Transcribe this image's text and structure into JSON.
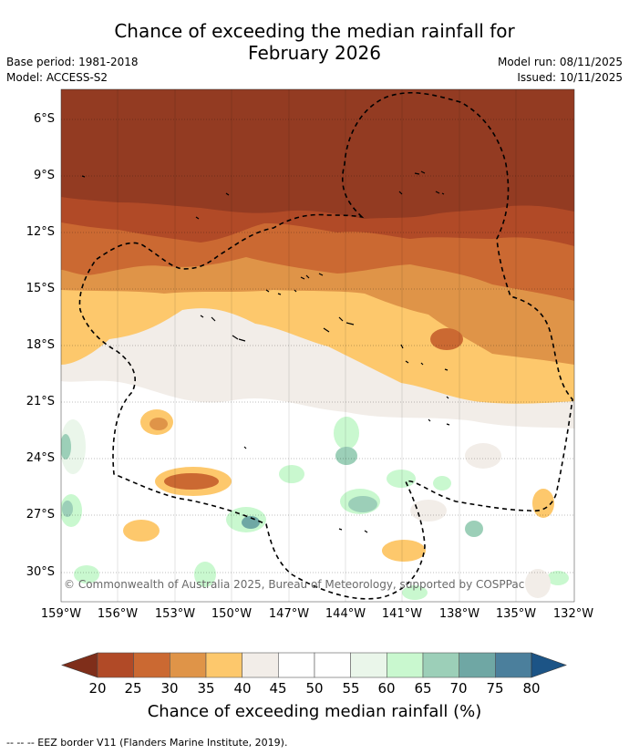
{
  "title_line1": "Chance of exceeding the median rainfall for",
  "title_line2": "February 2026",
  "meta": {
    "base_period": "Base period: 1981-2018",
    "model": "Model: ACCESS-S2",
    "model_run": "Model run: 08/11/2025",
    "issued": "Issued: 10/11/2025"
  },
  "y_axis_labels": [
    "6°S",
    "9°S",
    "12°S",
    "15°S",
    "18°S",
    "21°S",
    "24°S",
    "27°S",
    "30°S"
  ],
  "x_axis_labels": [
    "159°W",
    "156°W",
    "153°W",
    "150°W",
    "147°W",
    "144°W",
    "141°W",
    "138°W",
    "135°W",
    "132°W"
  ],
  "copyright": "© Commonwealth of Australia 2025, Bureau of Meteorology, supported by COSPPac",
  "colorbar": {
    "ticks": [
      "20",
      "25",
      "30",
      "35",
      "40",
      "45",
      "50",
      "55",
      "60",
      "65",
      "70",
      "75",
      "80"
    ],
    "colors": [
      "#933b22",
      "#b14a27",
      "#cb6932",
      "#df9448",
      "#fdc86c",
      "#f2ede8",
      "#ffffff",
      "#ffffff",
      "#eaf6ea",
      "#c9f8cf",
      "#9ccfb8",
      "#6fa7a4",
      "#4b7f9c"
    ],
    "under_color": "#7f2e1a",
    "over_color": "#1c5486",
    "label": "Chance of exceeding median rainfall (%)"
  },
  "footnote": "--  --  -- EEZ border V11 (Flanders Marine Institute, 2019)."
}
